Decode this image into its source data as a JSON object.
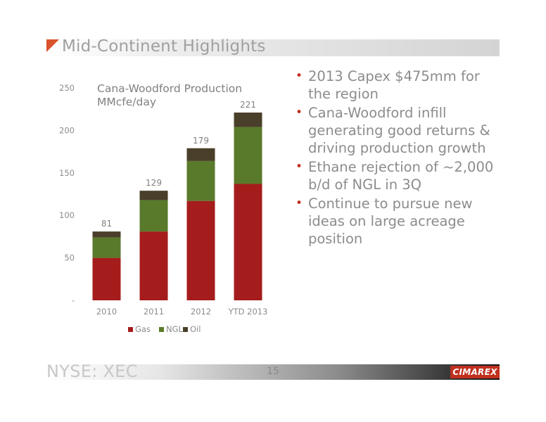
{
  "header": {
    "title": "Mid-Continent Highlights"
  },
  "bullets": [
    "2013 Capex $475mm for the region",
    "Cana-Woodford infill generating good returns & driving production growth",
    "Ethane rejection of ~2,000 b/d of NGL in 3Q",
    "Continue to pursue new ideas on large acreage position"
  ],
  "footer": {
    "ticker": "NYSE: XEC",
    "page_number": "15",
    "logo_text": "CIMAREX"
  },
  "colors": {
    "gas": "#a51c1c",
    "ngl": "#5a7a2b",
    "oil": "#4a3f2a",
    "accent": "#c0301f"
  },
  "chart_data": {
    "type": "bar",
    "stacked": true,
    "title": "Cana-Woodford Production",
    "subtitle": "MMcfe/day",
    "categories": [
      "2010",
      "2011",
      "2012",
      "YTD 2013"
    ],
    "series": [
      {
        "name": "Gas",
        "values": [
          50,
          81,
          117,
          137
        ]
      },
      {
        "name": "NGL",
        "values": [
          24,
          37,
          47,
          67
        ]
      },
      {
        "name": "Oil",
        "values": [
          7,
          11,
          15,
          17
        ]
      }
    ],
    "totals": [
      81,
      129,
      179,
      221
    ],
    "ylim": [
      0,
      250
    ],
    "yticks": [
      0,
      50,
      100,
      150,
      200,
      250
    ],
    "ytick_labels": [
      "-",
      "50",
      "100",
      "150",
      "200",
      "250"
    ],
    "legend_position": "bottom",
    "grid": false
  }
}
